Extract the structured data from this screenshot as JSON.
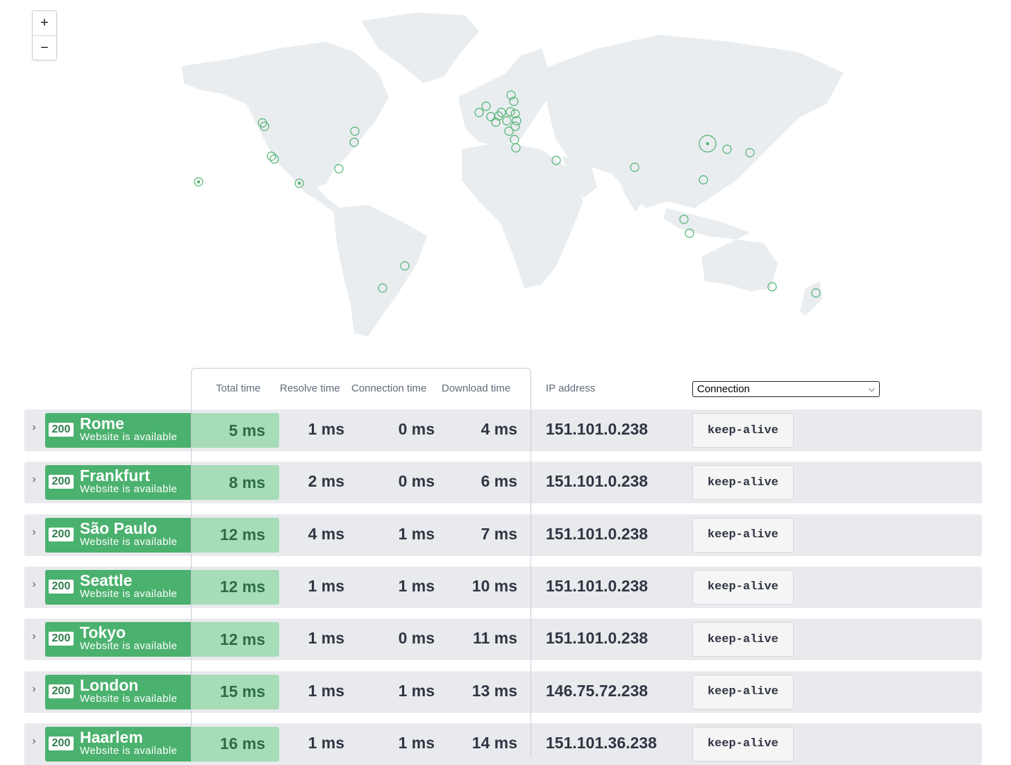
{
  "map": {
    "zoom_in_label": "+",
    "zoom_out_label": "−",
    "land_color": "#e9edf0",
    "marker_color": "#4bb16e"
  },
  "table": {
    "headers": {
      "total": "Total time",
      "resolve": "Resolve time",
      "connection": "Connection time",
      "download": "Download time",
      "ip": "IP address"
    },
    "column_select": {
      "value": "Connection"
    },
    "rows": [
      {
        "code": "200",
        "city": "Rome",
        "status": "Website is available",
        "total": "5 ms",
        "resolve": "1 ms",
        "connection": "0 ms",
        "download": "4 ms",
        "ip": "151.101.0.238",
        "conn": "keep-alive"
      },
      {
        "code": "200",
        "city": "Frankfurt",
        "status": "Website is available",
        "total": "8 ms",
        "resolve": "2 ms",
        "connection": "0 ms",
        "download": "6 ms",
        "ip": "151.101.0.238",
        "conn": "keep-alive"
      },
      {
        "code": "200",
        "city": "São Paulo",
        "status": "Website is available",
        "total": "12 ms",
        "resolve": "4 ms",
        "connection": "1 ms",
        "download": "7 ms",
        "ip": "151.101.0.238",
        "conn": "keep-alive"
      },
      {
        "code": "200",
        "city": "Seattle",
        "status": "Website is available",
        "total": "12 ms",
        "resolve": "1 ms",
        "connection": "1 ms",
        "download": "10 ms",
        "ip": "151.101.0.238",
        "conn": "keep-alive"
      },
      {
        "code": "200",
        "city": "Tokyo",
        "status": "Website is available",
        "total": "12 ms",
        "resolve": "1 ms",
        "connection": "0 ms",
        "download": "11 ms",
        "ip": "151.101.0.238",
        "conn": "keep-alive"
      },
      {
        "code": "200",
        "city": "London",
        "status": "Website is available",
        "total": "15 ms",
        "resolve": "1 ms",
        "connection": "1 ms",
        "download": "13 ms",
        "ip": "146.75.72.238",
        "conn": "keep-alive"
      },
      {
        "code": "200",
        "city": "Haarlem",
        "status": "Website is available",
        "total": "16 ms",
        "resolve": "1 ms",
        "connection": "1 ms",
        "download": "14 ms",
        "ip": "151.101.36.238",
        "conn": "keep-alive"
      }
    ]
  }
}
